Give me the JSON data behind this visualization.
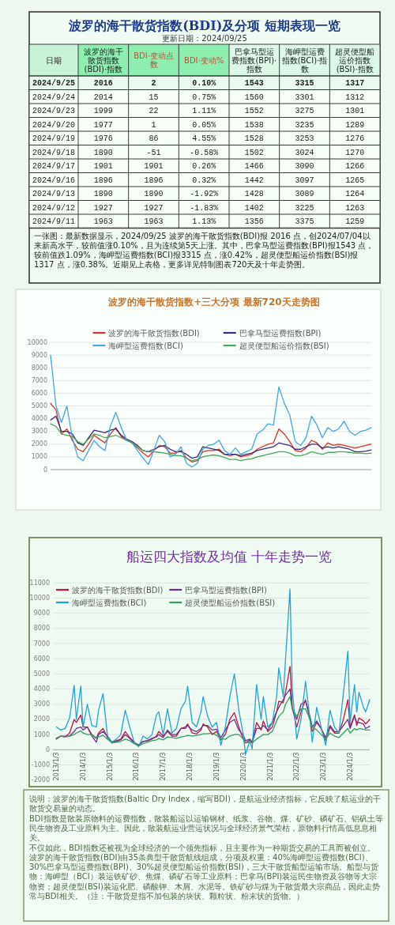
{
  "chart_data": [
    {
      "type": "heatmap",
      "title": "波罗的海干散货指数(BDI)及分项 短期表现一览",
      "subtitle": "更新日期：2024/09/25",
      "ylabel": "日期",
      "categories": [
        "波罗的海干散货指数(BDI)·指数",
        "BDI·变动点数",
        "BDI·变动%",
        "巴拿马型运费指数(BPI)·指数",
        "海岬型运费指数(BCI)·指数",
        "超灵便型船运价指数(BSI)·指数"
      ],
      "y_categories": [
        "2024/9/25",
        "2024/9/24",
        "2024/9/23",
        "2024/9/20",
        "2024/9/19",
        "2024/9/18",
        "2024/9/17",
        "2024/9/16",
        "2024/9/13",
        "2024/9/12",
        "2024/9/11"
      ],
      "cells": [
        [
          2016,
          2,
          0.1,
          1543,
          3315,
          1317
        ],
        [
          2014,
          15,
          0.75,
          1560,
          3301,
          1312
        ],
        [
          1999,
          22,
          1.11,
          1552,
          3275,
          1301
        ],
        [
          1977,
          1,
          0.05,
          1538,
          3235,
          1289
        ],
        [
          1976,
          86,
          4.55,
          1528,
          3253,
          1276
        ],
        [
          1890,
          -51,
          -0.58,
          1502,
          3024,
          1270
        ],
        [
          1901,
          1901,
          0.26,
          1466,
          3090,
          1266
        ],
        [
          1896,
          1896,
          0.32,
          1442,
          3097,
          1265
        ],
        [
          1890,
          1890,
          -1.92,
          1428,
          3089,
          1264
        ],
        [
          1927,
          1927,
          -1.83,
          1402,
          3225,
          1263
        ],
        [
          1963,
          1963,
          1.13,
          1356,
          3375,
          1259
        ]
      ],
      "cell_labels": [
        [
          "2016",
          "2",
          "0.10%",
          "1543",
          "3315",
          "1317"
        ],
        [
          "2014",
          "15",
          "0.75%",
          "1560",
          "3301",
          "1312"
        ],
        [
          "1999",
          "22",
          "1.11%",
          "1552",
          "3275",
          "1301"
        ],
        [
          "1977",
          "1",
          "0.05%",
          "1538",
          "3235",
          "1289"
        ],
        [
          "1976",
          "86",
          "4.55%",
          "1528",
          "3253",
          "1276"
        ],
        [
          "1890",
          "-51",
          "-0.58%",
          "1502",
          "3024",
          "1270"
        ],
        [
          "1901",
          "1901",
          "0.26%",
          "1466",
          "3090",
          "1266"
        ],
        [
          "1896",
          "1896",
          "0.32%",
          "1442",
          "3097",
          "1265"
        ],
        [
          "1890",
          "1890",
          "-1.92%",
          "1428",
          "3089",
          "1264"
        ],
        [
          "1927",
          "1927",
          "-1.83%",
          "1402",
          "3225",
          "1263"
        ],
        [
          "1963",
          "1963",
          "1.13%",
          "1356",
          "3375",
          "1259"
        ]
      ],
      "annotations": [
        "一张图：最新数据显示，2024/09/25 波罗的海干散货指数(BDI)报 2016 点，创2024/07/04以来新高水平，较前值涨0.10%，且为连续第5天上涨。其中，巴拿马型运费指数(BPI)报1543 点，较前值跌1.09%，海岬型运费指数(BCI)报3315 点，涨0.42%，超灵便型船运价指数(BSI)报1317 点，涨0.38%。近期见上表格，更多详见特制图表720天及十年走势图。"
      ]
    },
    {
      "type": "line",
      "title": "波罗的海干散货指数+三大分项 最新720天走势图",
      "categories": [
        null,
        null,
        null,
        null,
        null,
        null,
        null,
        null,
        null,
        null,
        null,
        null,
        null,
        null,
        null,
        null,
        null,
        null,
        null,
        null,
        null,
        null,
        null,
        null,
        null,
        null,
        null,
        null,
        null,
        null,
        null,
        null,
        null,
        null,
        null,
        null,
        null,
        null,
        null,
        null,
        null,
        null,
        null,
        null,
        null,
        null,
        null,
        null,
        null,
        null,
        null,
        null,
        null,
        null,
        null,
        null,
        null,
        null,
        null,
        null
      ],
      "ylim": [
        0,
        10000
      ],
      "yticks": [
        0,
        1000,
        2000,
        3000,
        4000,
        5000,
        6000,
        7000,
        8000,
        9000,
        10000
      ],
      "grid": "y",
      "legend": "top",
      "tick_labels": "y",
      "series": [
        {
          "name": "波罗的海干散货指数(BDI)",
          "color": "#d8322a",
          "values": [
            5200,
            4700,
            2800,
            3200,
            2300,
            1600,
            1400,
            2000,
            2700,
            2400,
            2100,
            2800,
            3300,
            2600,
            2300,
            2100,
            1700,
            1300,
            1000,
            1500,
            1900,
            1800,
            1300,
            1300,
            1500,
            900,
            600,
            700,
            1400,
            1500,
            1500,
            1600,
            1200,
            1100,
            1200,
            1000,
            1100,
            1200,
            1600,
            1800,
            2000,
            2100,
            3200,
            2800,
            2200,
            1500,
            1400,
            1700,
            2300,
            2100,
            1600,
            2100,
            1900,
            2000,
            1900,
            1800,
            1700,
            1800,
            1900,
            2000
          ]
        },
        {
          "name": "巴拿马型运费指数(BPI)",
          "color": "#3a2c7e",
          "values": [
            3900,
            4200,
            3000,
            3000,
            2800,
            2100,
            1900,
            2500,
            3100,
            3000,
            2900,
            3100,
            3200,
            2700,
            2400,
            2200,
            1900,
            1500,
            1400,
            1600,
            1800,
            1900,
            1600,
            1400,
            1400,
            1200,
            900,
            1000,
            1800,
            1700,
            1600,
            1500,
            1200,
            1200,
            1200,
            1100,
            1200,
            1300,
            1500,
            1600,
            1700,
            1800,
            2100,
            2000,
            1900,
            1600,
            1600,
            1800,
            2000,
            2000,
            1700,
            1800,
            1700,
            1800,
            1700,
            1600,
            1400,
            1400,
            1450,
            1550
          ]
        },
        {
          "name": "海岬型运费指数(BCI)",
          "color": "#3ea8df",
          "values": [
            9000,
            5000,
            3700,
            5000,
            2500,
            1000,
            700,
            1500,
            2300,
            1800,
            1500,
            3400,
            4500,
            3300,
            2300,
            2100,
            1500,
            900,
            400,
            1500,
            2700,
            2200,
            1000,
            1200,
            1800,
            500,
            200,
            500,
            1600,
            1900,
            2000,
            2300,
            1500,
            1200,
            1700,
            1200,
            1400,
            1600,
            2800,
            3100,
            3600,
            3500,
            6500,
            5200,
            4300,
            2200,
            1900,
            2500,
            4200,
            3500,
            2500,
            3300,
            3000,
            3200,
            3800,
            3000,
            2700,
            3000,
            3100,
            3300
          ]
        },
        {
          "name": "超灵便型船运价指数(BSI)",
          "color": "#48a65c",
          "values": [
            3600,
            3400,
            2800,
            2700,
            2600,
            2200,
            2000,
            2400,
            2800,
            2700,
            2500,
            2600,
            2700,
            2500,
            2300,
            2100,
            1800,
            1500,
            1400,
            1400,
            1350,
            1300,
            1200,
            1100,
            1100,
            900,
            700,
            800,
            1000,
            1100,
            1150,
            1100,
            950,
            800,
            800,
            700,
            800,
            850,
            1000,
            1100,
            1200,
            1300,
            1400,
            1400,
            1300,
            1100,
            1100,
            1200,
            1400,
            1300,
            1200,
            1350,
            1350,
            1400,
            1400,
            1350,
            1300,
            1300,
            1250,
            1300
          ]
        }
      ]
    },
    {
      "type": "line",
      "title": "船运四大指数及均值 十年走势一览",
      "x": [
        "2013-01",
        "2013-03",
        "2013-05",
        "2013-07",
        "2013-09",
        "2013-10",
        "2013-12",
        "2014-01",
        "2014-03",
        "2014-05",
        "2014-07",
        "2014-08",
        "2014-10",
        "2014-12",
        "2015-02",
        "2015-04",
        "2015-06",
        "2015-08",
        "2015-10",
        "2015-12",
        "2016-02",
        "2016-04",
        "2016-06",
        "2016-08",
        "2016-10",
        "2016-11",
        "2017-01",
        "2017-03",
        "2017-05",
        "2017-07",
        "2017-09",
        "2017-11",
        "2017-12",
        "2018-02",
        "2018-04",
        "2018-06",
        "2018-07",
        "2018-09",
        "2018-11",
        "2019-01",
        "2019-03",
        "2019-05",
        "2019-07",
        "2019-09",
        "2019-11",
        "2020-01",
        "2020-02",
        "2020-04",
        "2020-05",
        "2020-07",
        "2020-09",
        "2020-10",
        "2020-12",
        "2021-02",
        "2021-04",
        "2021-05",
        "2021-07",
        "2021-08",
        "2021-10",
        "2021-11",
        "2022-01",
        "2022-03",
        "2022-05",
        "2022-07",
        "2022-08",
        "2022-10",
        "2022-12",
        "2023-02",
        "2023-04",
        "2023-06",
        "2023-08",
        "2023-10",
        "2023-12",
        "2024-01",
        "2024-03",
        "2024-04",
        "2024-05",
        "2024-07",
        "2024-08",
        "2024-09-25"
      ],
      "xlim": [
        "2012-11-15",
        "2024-09-25"
      ],
      "xticks": [
        {
          "value": "2013-01-03",
          "label": "2013/1/3"
        },
        {
          "value": "2014-01-03",
          "label": "2014/1/3"
        },
        {
          "value": "2015-01-03",
          "label": "2015/1/3"
        },
        {
          "value": "2016-01-03",
          "label": "2016/1/3"
        },
        {
          "value": "2017-01-03",
          "label": "2017/1/3"
        },
        {
          "value": "2018-01-03",
          "label": "2018/1/3"
        },
        {
          "value": "2019-01-03",
          "label": "2019/1/3"
        },
        {
          "value": "2020-01-03",
          "label": "2020/1/3"
        },
        {
          "value": "2021-01-03",
          "label": "2021/1/3"
        },
        {
          "value": "2022-01-03",
          "label": "2022/1/3"
        },
        {
          "value": "2023-01-03",
          "label": "2023/1/3"
        },
        {
          "value": "2024-01-03",
          "label": "2024/1/3"
        }
      ],
      "ylim": [
        -2000,
        11000
      ],
      "yticks": [
        -2000,
        -1000,
        0,
        1000,
        2000,
        3000,
        4000,
        5000,
        6000,
        7000,
        8000,
        9000,
        10000,
        11000
      ],
      "grid": "y",
      "legend": "top left",
      "series": [
        {
          "name": "波罗的海干散货指数(BDI)",
          "color": "#c4143f",
          "values": [
            750,
            900,
            850,
            1100,
            2000,
            1800,
            2300,
            1500,
            1500,
            1000,
            750,
            1100,
            1400,
            800,
            500,
            600,
            700,
            1200,
            800,
            500,
            300,
            550,
            600,
            700,
            900,
            1200,
            900,
            1200,
            900,
            900,
            1400,
            1500,
            1700,
            1100,
            1050,
            1300,
            1700,
            1500,
            1000,
            1200,
            650,
            1000,
            2000,
            2450,
            1500,
            700,
            450,
            650,
            450,
            1800,
            1300,
            1900,
            1200,
            1500,
            2500,
            3200,
            3100,
            3800,
            5500,
            2800,
            1500,
            2500,
            3300,
            2000,
            1200,
            1800,
            1400,
            600,
            1500,
            1100,
            1100,
            2000,
            3300,
            1500,
            2300,
            1600,
            2100,
            1900,
            1700,
            2000
          ]
        },
        {
          "name": "巴拿马型运费指数(BPI)",
          "color": "#6b2f8f",
          "values": [
            700,
            900,
            900,
            900,
            1200,
            1400,
            1500,
            1300,
            1500,
            900,
            500,
            1000,
            1200,
            900,
            450,
            550,
            650,
            1000,
            750,
            450,
            300,
            550,
            600,
            750,
            850,
            1000,
            800,
            1300,
            1000,
            1000,
            1400,
            1400,
            1600,
            1300,
            1200,
            1400,
            1600,
            1600,
            1300,
            1350,
            800,
            1300,
            1800,
            2000,
            1300,
            950,
            600,
            700,
            500,
            1400,
            1400,
            1600,
            1300,
            1800,
            2500,
            2800,
            3300,
            3600,
            4000,
            2700,
            2000,
            3000,
            3200,
            2200,
            1500,
            1900,
            1400,
            800,
            1600,
            1200,
            1200,
            1600,
            2000,
            1400,
            2200,
            1800,
            1800,
            1700,
            1400,
            1550
          ]
        },
        {
          "name": "海岬型运费指数(BCI)",
          "color": "#22a3d6",
          "values": [
            1500,
            1300,
            1400,
            2100,
            4250,
            2000,
            4200,
            1500,
            3000,
            1600,
            1500,
            2600,
            3700,
            900,
            500,
            700,
            1000,
            2600,
            1500,
            500,
            200,
            900,
            700,
            1000,
            2300,
            2500,
            1000,
            2700,
            1100,
            1400,
            2700,
            3200,
            4200,
            1800,
            1500,
            2500,
            3500,
            2200,
            1500,
            1800,
            300,
            1500,
            3500,
            5000,
            2600,
            1000,
            -300,
            600,
            50,
            4300,
            2000,
            3500,
            1500,
            1800,
            3500,
            5400,
            3500,
            6000,
            10600,
            4000,
            700,
            2000,
            4500,
            2000,
            500,
            2800,
            1500,
            300,
            2600,
            1500,
            1100,
            3700,
            6500,
            1800,
            4300,
            2500,
            3800,
            2800,
            2500,
            3300
          ]
        },
        {
          "name": "超灵便型船运价指数(BSI)",
          "color": "#2f9e5e",
          "values": [
            750,
            900,
            850,
            900,
            1000,
            1100,
            1250,
            1100,
            1000,
            1000,
            800,
            850,
            950,
            700,
            450,
            500,
            550,
            700,
            600,
            400,
            250,
            400,
            500,
            600,
            650,
            750,
            650,
            850,
            800,
            750,
            850,
            900,
            950,
            900,
            950,
            1000,
            1050,
            1050,
            1100,
            950,
            700,
            700,
            900,
            1000,
            1000,
            700,
            450,
            500,
            450,
            700,
            900,
            1000,
            1000,
            1200,
            1900,
            2200,
            2500,
            3000,
            3500,
            2700,
            2200,
            2700,
            2700,
            2000,
            1500,
            1300,
            1000,
            700,
            1100,
            900,
            800,
            1100,
            1400,
            1100,
            1400,
            1300,
            1400,
            1350,
            1300,
            1300
          ]
        }
      ]
    },
    {
      "type": "other",
      "annotations": [
        "说明：波罗的海干散货指数(Baltic Dry Index，缩写BDI)，是航运业经济指标，它反映了航运业的干散货交易量的动态。",
        "BDI指数是散装原物料的运费指数，散装船运以运输钢材、纸浆、谷物、煤、矿砂、磷矿石、铝矾土等民生物资及工业原料为主。因此，散装航运业营运状况与全球经济景气荣枯，原物料行情高低息息相关。",
        "不仅如此，BDI指数还被视为全球经济的一个领先指标，且主要作为一种期货交易的工具而被创立。",
        "波罗的海干散货指数(BDI)由35条典型干散货航线组成，分项及权重：40%海岬型运费指数(BCI)、30%巴拿马型运费指数(BPI)、30%超灵便型船运价指数(BSI)，三大干散货船型运输市场。船型与货物：海岬型（BCI）装运铁矿砂、焦煤、磷矿石等工业原料；巴拿马(BPI)装运民生物资及谷物等大宗物资；超灵便型(BSI)装运化肥、磷酸钾、木屑、水泥等。铁矿砂与煤为干散货最大宗商品，因此走势常与BDI相关。（注：干散货是指不加包装的块状、颗粒状、粉末状的货物。）"
      ]
    }
  ]
}
